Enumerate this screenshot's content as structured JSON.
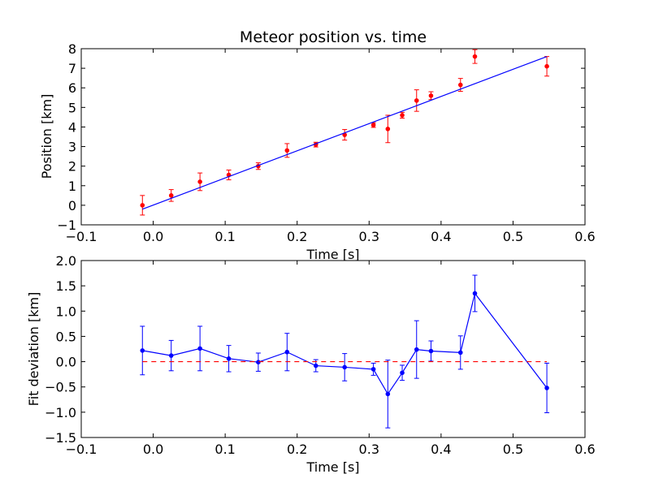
{
  "chart_data": [
    {
      "type": "scatter",
      "title": "Meteor position vs. time",
      "xlabel": "Time [s]",
      "ylabel": "Position [km]",
      "xlim": [
        -0.1,
        0.6
      ],
      "ylim": [
        -1,
        8
      ],
      "xticks": [
        "−0.1",
        "0.0",
        "0.1",
        "0.2",
        "0.3",
        "0.4",
        "0.5",
        "0.6"
      ],
      "yticks": [
        "−1",
        "0",
        "1",
        "2",
        "3",
        "4",
        "5",
        "6",
        "7",
        "8"
      ],
      "grid": false,
      "series": [
        {
          "kind": "errorbar-points",
          "color": "#ff0000",
          "x": [
            -0.015,
            0.025,
            0.065,
            0.105,
            0.146,
            0.186,
            0.226,
            0.266,
            0.306,
            0.326,
            0.346,
            0.366,
            0.386,
            0.427,
            0.447,
            0.547
          ],
          "y": [
            0.0,
            0.5,
            1.2,
            1.55,
            2.0,
            2.8,
            3.1,
            3.6,
            4.1,
            3.9,
            4.6,
            5.35,
            5.6,
            6.15,
            7.6,
            7.1
          ],
          "yerr": [
            0.5,
            0.3,
            0.45,
            0.25,
            0.17,
            0.35,
            0.12,
            0.27,
            0.12,
            0.7,
            0.15,
            0.55,
            0.2,
            0.33,
            0.35,
            0.5
          ]
        },
        {
          "kind": "fit-line",
          "color": "#0000ff",
          "x": [
            -0.015,
            0.547
          ],
          "y": [
            -0.2,
            7.6
          ]
        }
      ]
    },
    {
      "type": "line",
      "title": "",
      "xlabel": "Time [s]",
      "ylabel": "Fit deviation [km]",
      "xlim": [
        -0.1,
        0.6
      ],
      "ylim": [
        -1.5,
        2.0
      ],
      "xticks": [
        "−0.1",
        "0.0",
        "0.1",
        "0.2",
        "0.3",
        "0.4",
        "0.5",
        "0.6"
      ],
      "yticks": [
        "−1.5",
        "−1.0",
        "−0.5",
        "0.0",
        "0.5",
        "1.0",
        "1.5",
        "2.0"
      ],
      "grid": false,
      "series": [
        {
          "kind": "errorbar-line",
          "color": "#0000ff",
          "x": [
            -0.015,
            0.025,
            0.065,
            0.105,
            0.146,
            0.186,
            0.226,
            0.266,
            0.306,
            0.326,
            0.346,
            0.366,
            0.386,
            0.427,
            0.447,
            0.547
          ],
          "y": [
            0.22,
            0.12,
            0.26,
            0.06,
            -0.01,
            0.19,
            -0.08,
            -0.11,
            -0.15,
            -0.64,
            -0.22,
            0.24,
            0.21,
            0.18,
            1.35,
            -0.52
          ],
          "yerr": [
            0.48,
            0.3,
            0.44,
            0.26,
            0.18,
            0.37,
            0.12,
            0.27,
            0.12,
            0.67,
            0.15,
            0.57,
            0.2,
            0.33,
            0.36,
            0.49
          ]
        },
        {
          "kind": "zero-line",
          "color": "#ff0000",
          "dashed": true,
          "x": [
            -0.015,
            0.547
          ],
          "y": [
            0.0,
            0.0
          ]
        }
      ]
    }
  ]
}
